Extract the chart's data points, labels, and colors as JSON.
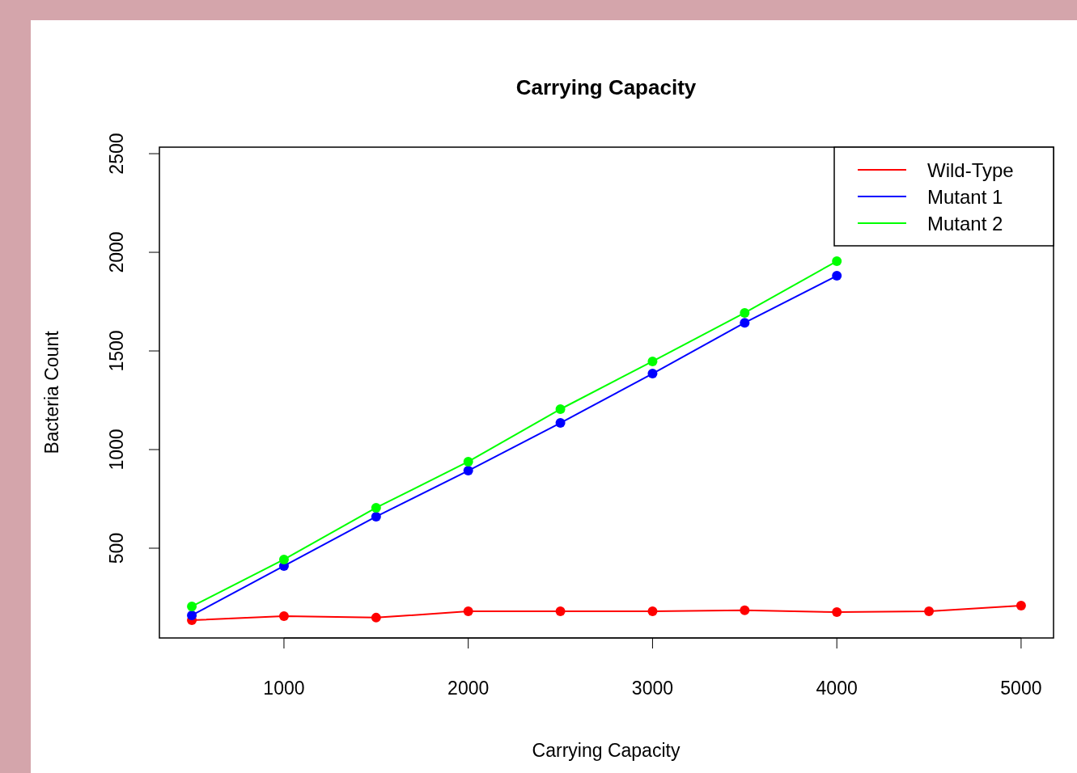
{
  "chart_data": {
    "type": "line",
    "title": "Carrying Capacity",
    "xlabel": "Carrying Capacity",
    "ylabel": "Bacteria Count",
    "x": [
      500,
      1000,
      1500,
      2000,
      2500,
      3000,
      3500,
      4000,
      4500,
      5000
    ],
    "series": [
      {
        "name": "Wild-Type",
        "color": "#ff0000",
        "values": [
          135,
          156,
          148,
          180,
          180,
          180,
          185,
          176,
          180,
          209
        ]
      },
      {
        "name": "Mutant 1",
        "color": "#0000ff",
        "values": [
          160,
          410,
          660,
          893,
          1135,
          1385,
          1643,
          1881,
          null,
          null
        ]
      },
      {
        "name": "Mutant 2",
        "color": "#00ff00",
        "values": [
          205,
          443,
          705,
          939,
          1205,
          1447,
          1693,
          1955,
          null,
          null
        ]
      }
    ],
    "xlim": [
      324,
      5176
    ],
    "xticks": [
      1000,
      2000,
      3000,
      4000,
      5000
    ],
    "ylim": [
      45,
      2533
    ],
    "yticks": [
      500,
      1000,
      1500,
      2000,
      2500
    ],
    "grid": false,
    "legend": "top right",
    "marker": "circle",
    "line_style": "solid"
  }
}
